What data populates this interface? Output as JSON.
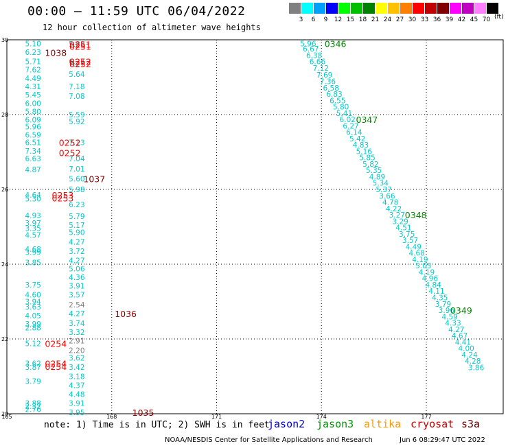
{
  "title": "00:00 — 11:59 UTC 06/04/2022",
  "subtitle": "12 hour collection of altimeter wave heights",
  "scale": {
    "labels": [
      "3",
      "6",
      "9",
      "12",
      "15",
      "18",
      "21",
      "24",
      "27",
      "30",
      "33",
      "36",
      "39",
      "42",
      "45",
      "70"
    ],
    "unit": "(ft)",
    "colors": [
      "#808080",
      "#00ffff",
      "#00a0ff",
      "#0000ff",
      "#00ff00",
      "#00c000",
      "#008000",
      "#ffff00",
      "#ffc000",
      "#ff8000",
      "#ff0000",
      "#c00000",
      "#800000",
      "#ff00ff",
      "#c000c0",
      "#ff80ff",
      "#000000"
    ]
  },
  "note": "note: 1) Time is in UTC; 2) SWH is in feet",
  "legend": [
    {
      "name": "jason2",
      "color": "#0000cc"
    },
    {
      "name": "jason3",
      "color": "#009900"
    },
    {
      "name": "altika",
      "color": "#ff9900"
    },
    {
      "name": "cryosat",
      "color": "#cc0000"
    },
    {
      "name": "s3a",
      "color": "#660000"
    }
  ],
  "credit": "NOAA/NESDIS Center for Satellite Applications and Research",
  "timestamp": "Jun  6 08:29:47 UTC 2022",
  "chart_data": {
    "type": "scatter",
    "title": "00:00 — 11:59 UTC 06/04/2022",
    "subtitle": "12 hour collection of altimeter wave heights",
    "xlim": [
      165,
      179.2
    ],
    "ylim": [
      20,
      30
    ],
    "x_ticks": [
      "165",
      "168",
      "171",
      "174",
      "177"
    ],
    "y_ticks": [
      "20",
      "22",
      "24",
      "26",
      "28",
      "30"
    ],
    "grid": true,
    "point_labels": [
      {
        "x": 165.75,
        "y": 29.9,
        "text": "5.10",
        "color": "#00cccc"
      },
      {
        "x": 165.75,
        "y": 29.67,
        "text": "6.23",
        "color": "#00cccc"
      },
      {
        "x": 165.75,
        "y": 29.42,
        "text": "5.71",
        "color": "#00cccc"
      },
      {
        "x": 165.75,
        "y": 29.2,
        "text": "7.62",
        "color": "#00cccc"
      },
      {
        "x": 165.75,
        "y": 28.97,
        "text": "4.49",
        "color": "#00cccc"
      },
      {
        "x": 165.75,
        "y": 28.75,
        "text": "4.31",
        "color": "#00cccc"
      },
      {
        "x": 165.75,
        "y": 28.53,
        "text": "5.45",
        "color": "#00cccc"
      },
      {
        "x": 165.75,
        "y": 28.3,
        "text": "6.00",
        "color": "#00cccc"
      },
      {
        "x": 165.75,
        "y": 28.08,
        "text": "5.80",
        "color": "#00cccc"
      },
      {
        "x": 165.75,
        "y": 27.86,
        "text": "6.09",
        "color": "#00cccc"
      },
      {
        "x": 165.75,
        "y": 27.68,
        "text": "5.96",
        "color": "#00cccc"
      },
      {
        "x": 165.75,
        "y": 27.46,
        "text": "6.59",
        "color": "#00cccc"
      },
      {
        "x": 165.75,
        "y": 27.26,
        "text": "6.51",
        "color": "#00cccc"
      },
      {
        "x": 165.75,
        "y": 27.03,
        "text": "7.34",
        "color": "#00cccc"
      },
      {
        "x": 165.75,
        "y": 26.83,
        "text": "6.63",
        "color": "#00cccc"
      },
      {
        "x": 165.75,
        "y": 26.53,
        "text": "4.87",
        "color": "#00cccc"
      },
      {
        "x": 165.75,
        "y": 25.85,
        "text": "4.64",
        "color": "#00cccc"
      },
      {
        "x": 165.75,
        "y": 25.75,
        "text": "5.30",
        "color": "#00cccc"
      },
      {
        "x": 165.75,
        "y": 25.3,
        "text": "4.93",
        "color": "#00cccc"
      },
      {
        "x": 165.75,
        "y": 25.1,
        "text": "3.97",
        "color": "#00cccc"
      },
      {
        "x": 165.75,
        "y": 24.96,
        "text": "3.35",
        "color": "#00cccc"
      },
      {
        "x": 165.75,
        "y": 24.78,
        "text": "4.57",
        "color": "#00cccc"
      },
      {
        "x": 165.75,
        "y": 24.4,
        "text": "4.68",
        "color": "#00cccc"
      },
      {
        "x": 165.75,
        "y": 24.32,
        "text": "3.99",
        "color": "#00cccc"
      },
      {
        "x": 165.75,
        "y": 24.05,
        "text": "3.85",
        "color": "#00cccc"
      },
      {
        "x": 165.75,
        "y": 23.45,
        "text": "3.75",
        "color": "#00cccc"
      },
      {
        "x": 165.75,
        "y": 23.18,
        "text": "4.60",
        "color": "#00cccc"
      },
      {
        "x": 165.75,
        "y": 23.0,
        "text": "3.94",
        "color": "#00cccc"
      },
      {
        "x": 165.75,
        "y": 22.86,
        "text": "3.63",
        "color": "#00cccc"
      },
      {
        "x": 165.75,
        "y": 22.62,
        "text": "4.05",
        "color": "#00cccc"
      },
      {
        "x": 165.75,
        "y": 22.4,
        "text": "3.99",
        "color": "#00cccc"
      },
      {
        "x": 165.75,
        "y": 22.3,
        "text": "2.88",
        "color": "#00cccc"
      },
      {
        "x": 165.75,
        "y": 21.88,
        "text": "5.12",
        "color": "#00cccc"
      },
      {
        "x": 165.75,
        "y": 21.35,
        "text": "3.62",
        "color": "#00cccc"
      },
      {
        "x": 165.75,
        "y": 21.25,
        "text": "3.87",
        "color": "#00cccc"
      },
      {
        "x": 165.75,
        "y": 20.87,
        "text": "3.79",
        "color": "#00cccc"
      },
      {
        "x": 165.75,
        "y": 20.28,
        "text": "3.88",
        "color": "#00cccc"
      },
      {
        "x": 165.75,
        "y": 20.2,
        "text": "2.32",
        "color": "#00cccc"
      },
      {
        "x": 165.75,
        "y": 20.12,
        "text": "2.76",
        "color": "#00cccc"
      },
      {
        "x": 167.0,
        "y": 29.89,
        "text": "5.88",
        "color": "#00cccc"
      },
      {
        "x": 167.0,
        "y": 29.42,
        "text": "6.27",
        "color": "#00cccc"
      },
      {
        "x": 167.0,
        "y": 29.36,
        "text": "7.27",
        "color": "#00cccc"
      },
      {
        "x": 167.0,
        "y": 29.08,
        "text": "5.64",
        "color": "#00cccc"
      },
      {
        "x": 167.0,
        "y": 28.75,
        "text": "7.18",
        "color": "#00cccc"
      },
      {
        "x": 167.0,
        "y": 28.5,
        "text": "7.08",
        "color": "#00cccc"
      },
      {
        "x": 167.0,
        "y": 28.0,
        "text": "5.59",
        "color": "#00cccc"
      },
      {
        "x": 167.0,
        "y": 27.82,
        "text": "5.92",
        "color": "#00cccc"
      },
      {
        "x": 167.0,
        "y": 27.26,
        "text": "7.13",
        "color": "#00cccc"
      },
      {
        "x": 167.0,
        "y": 26.83,
        "text": "7.04",
        "color": "#00cccc"
      },
      {
        "x": 167.0,
        "y": 26.55,
        "text": "7.01",
        "color": "#00cccc"
      },
      {
        "x": 167.0,
        "y": 26.28,
        "text": "5.60",
        "color": "#00cccc"
      },
      {
        "x": 167.0,
        "y": 26.0,
        "text": "5.98",
        "color": "#00cccc"
      },
      {
        "x": 167.0,
        "y": 25.6,
        "text": "6.23",
        "color": "#00cccc"
      },
      {
        "x": 167.0,
        "y": 25.28,
        "text": "5.79",
        "color": "#00cccc"
      },
      {
        "x": 167.0,
        "y": 25.05,
        "text": "5.17",
        "color": "#00cccc"
      },
      {
        "x": 167.0,
        "y": 24.85,
        "text": "5.90",
        "color": "#00cccc"
      },
      {
        "x": 167.0,
        "y": 24.6,
        "text": "4.27",
        "color": "#00cccc"
      },
      {
        "x": 167.0,
        "y": 24.35,
        "text": "3.72",
        "color": "#00cccc"
      },
      {
        "x": 167.0,
        "y": 24.1,
        "text": "4.27",
        "color": "#00cccc"
      },
      {
        "x": 167.0,
        "y": 23.88,
        "text": "5.06",
        "color": "#00cccc"
      },
      {
        "x": 167.0,
        "y": 23.65,
        "text": "4.36",
        "color": "#00cccc"
      },
      {
        "x": 167.0,
        "y": 23.42,
        "text": "3.91",
        "color": "#00cccc"
      },
      {
        "x": 167.0,
        "y": 23.18,
        "text": "3.57",
        "color": "#00cccc"
      },
      {
        "x": 167.0,
        "y": 22.92,
        "text": "2.54",
        "color": "#808080"
      },
      {
        "x": 167.0,
        "y": 22.68,
        "text": "4.27",
        "color": "#00cccc"
      },
      {
        "x": 167.0,
        "y": 22.42,
        "text": "3.74",
        "color": "#00cccc"
      },
      {
        "x": 167.0,
        "y": 22.18,
        "text": "3.32",
        "color": "#00cccc"
      },
      {
        "x": 167.0,
        "y": 21.95,
        "text": "2.91",
        "color": "#808080"
      },
      {
        "x": 167.0,
        "y": 21.7,
        "text": "2.20",
        "color": "#808080"
      },
      {
        "x": 167.0,
        "y": 21.5,
        "text": "3.62",
        "color": "#00cccc"
      },
      {
        "x": 167.0,
        "y": 21.25,
        "text": "3.42",
        "color": "#00cccc"
      },
      {
        "x": 167.0,
        "y": 21.0,
        "text": "3.18",
        "color": "#00cccc"
      },
      {
        "x": 167.0,
        "y": 20.76,
        "text": "4.37",
        "color": "#00cccc"
      },
      {
        "x": 167.0,
        "y": 20.52,
        "text": "4.48",
        "color": "#00cccc"
      },
      {
        "x": 167.0,
        "y": 20.28,
        "text": "3.91",
        "color": "#00cccc"
      },
      {
        "x": 167.0,
        "y": 20.04,
        "text": "3.95",
        "color": "#00cccc"
      },
      {
        "x": 174.0,
        "y": 29.9,
        "text": "5.96",
        "color": "#00cccc"
      },
      {
        "x": 174.0,
        "y": 29.76,
        "text": "6.67",
        "color": "#00cccc"
      },
      {
        "x": 174.0,
        "y": 29.59,
        "text": "6.38",
        "color": "#00cccc"
      },
      {
        "x": 174.0,
        "y": 29.42,
        "text": "6.66",
        "color": "#00cccc"
      },
      {
        "x": 174.0,
        "y": 29.25,
        "text": "7.12",
        "color": "#00cccc"
      },
      {
        "x": 174.0,
        "y": 29.06,
        "text": "7.69",
        "color": "#00cccc"
      },
      {
        "x": 174.0,
        "y": 28.89,
        "text": "7.36",
        "color": "#00cccc"
      },
      {
        "x": 174.0,
        "y": 28.72,
        "text": "6.58",
        "color": "#00cccc"
      },
      {
        "x": 174.0,
        "y": 28.55,
        "text": "6.83",
        "color": "#00cccc"
      },
      {
        "x": 174.0,
        "y": 28.38,
        "text": "6.55",
        "color": "#00cccc"
      },
      {
        "x": 174.0,
        "y": 28.21,
        "text": "5.80",
        "color": "#00cccc"
      },
      {
        "x": 174.0,
        "y": 28.04,
        "text": "5.41",
        "color": "#00cccc"
      },
      {
        "x": 174.0,
        "y": 27.87,
        "text": "6.02",
        "color": "#00cccc"
      },
      {
        "x": 174.0,
        "y": 27.7,
        "text": "6.27",
        "color": "#00cccc"
      },
      {
        "x": 174.0,
        "y": 27.53,
        "text": "6.14",
        "color": "#00cccc"
      },
      {
        "x": 174.0,
        "y": 27.36,
        "text": "5.42",
        "color": "#00cccc"
      },
      {
        "x": 174.0,
        "y": 27.19,
        "text": "4.83",
        "color": "#00cccc"
      },
      {
        "x": 174.0,
        "y": 27.02,
        "text": "5.16",
        "color": "#00cccc"
      },
      {
        "x": 174.0,
        "y": 26.85,
        "text": "5.85",
        "color": "#00cccc"
      },
      {
        "x": 174.0,
        "y": 26.68,
        "text": "5.82",
        "color": "#00cccc"
      },
      {
        "x": 174.0,
        "y": 26.51,
        "text": "5.35",
        "color": "#00cccc"
      },
      {
        "x": 174.0,
        "y": 26.34,
        "text": "4.89",
        "color": "#00cccc"
      },
      {
        "x": 174.0,
        "y": 26.17,
        "text": "5.34",
        "color": "#00cccc"
      },
      {
        "x": 174.0,
        "y": 26.0,
        "text": "5.37",
        "color": "#00cccc"
      },
      {
        "x": 174.0,
        "y": 25.83,
        "text": "3.66",
        "color": "#00cccc"
      },
      {
        "x": 174.0,
        "y": 25.66,
        "text": "4.78",
        "color": "#00cccc"
      },
      {
        "x": 174.0,
        "y": 25.49,
        "text": "4.22",
        "color": "#00cccc"
      },
      {
        "x": 174.0,
        "y": 25.32,
        "text": "3.27",
        "color": "#00cccc"
      },
      {
        "x": 174.0,
        "y": 25.15,
        "text": "3.29",
        "color": "#00cccc"
      },
      {
        "x": 174.0,
        "y": 24.98,
        "text": "4.51",
        "color": "#00cccc"
      },
      {
        "x": 174.0,
        "y": 24.81,
        "text": "3.75",
        "color": "#00cccc"
      },
      {
        "x": 174.0,
        "y": 24.64,
        "text": "3.57",
        "color": "#00cccc"
      },
      {
        "x": 174.0,
        "y": 24.47,
        "text": "4.49",
        "color": "#00cccc"
      },
      {
        "x": 174.0,
        "y": 24.3,
        "text": "4.68",
        "color": "#00cccc"
      },
      {
        "x": 174.0,
        "y": 24.13,
        "text": "4.19",
        "color": "#00cccc"
      },
      {
        "x": 174.0,
        "y": 23.96,
        "text": "5.05",
        "color": "#00cccc"
      },
      {
        "x": 174.0,
        "y": 23.79,
        "text": "4.19",
        "color": "#00cccc"
      },
      {
        "x": 174.0,
        "y": 23.62,
        "text": "4.96",
        "color": "#00cccc"
      },
      {
        "x": 174.0,
        "y": 23.45,
        "text": "4.84",
        "color": "#00cccc"
      },
      {
        "x": 174.0,
        "y": 23.28,
        "text": "4.11",
        "color": "#00cccc"
      },
      {
        "x": 174.0,
        "y": 23.11,
        "text": "4.35",
        "color": "#00cccc"
      },
      {
        "x": 174.0,
        "y": 22.94,
        "text": "3.79",
        "color": "#00cccc"
      },
      {
        "x": 174.0,
        "y": 22.77,
        "text": "3.96",
        "color": "#00cccc"
      },
      {
        "x": 174.0,
        "y": 22.6,
        "text": "4.59",
        "color": "#00cccc"
      },
      {
        "x": 174.0,
        "y": 22.43,
        "text": "4.33",
        "color": "#00cccc"
      },
      {
        "x": 174.0,
        "y": 22.26,
        "text": "4.27",
        "color": "#00cccc"
      },
      {
        "x": 174.0,
        "y": 22.09,
        "text": "4.67",
        "color": "#00cccc"
      },
      {
        "x": 174.0,
        "y": 21.92,
        "text": "4.41",
        "color": "#00cccc"
      },
      {
        "x": 174.0,
        "y": 21.75,
        "text": "4.00",
        "color": "#00cccc"
      },
      {
        "x": 174.0,
        "y": 21.58,
        "text": "4.24",
        "color": "#00cccc"
      },
      {
        "x": 174.0,
        "y": 21.41,
        "text": "4.28",
        "color": "#00cccc"
      },
      {
        "x": 174.0,
        "y": 21.24,
        "text": "3.86",
        "color": "#00cccc"
      }
    ],
    "time_labels": [
      {
        "x": 167.1,
        "y": 29.88,
        "text": "0251",
        "color": "#ff0000"
      },
      {
        "x": 167.1,
        "y": 29.83,
        "text": "0251",
        "color": "#ff0000"
      },
      {
        "x": 166.4,
        "y": 29.66,
        "text": "1038",
        "color": "#880000"
      },
      {
        "x": 167.1,
        "y": 29.42,
        "text": "0252",
        "color": "#ff0000"
      },
      {
        "x": 167.1,
        "y": 29.36,
        "text": "0252",
        "color": "#ff0000"
      },
      {
        "x": 166.8,
        "y": 27.26,
        "text": "0252",
        "color": "#ff0000"
      },
      {
        "x": 166.8,
        "y": 26.98,
        "text": "0252",
        "color": "#ff0000"
      },
      {
        "x": 167.5,
        "y": 26.28,
        "text": "1037",
        "color": "#880000"
      },
      {
        "x": 166.6,
        "y": 25.85,
        "text": "0253",
        "color": "#ff0000"
      },
      {
        "x": 166.6,
        "y": 25.77,
        "text": "0253",
        "color": "#ff0000"
      },
      {
        "x": 168.4,
        "y": 22.68,
        "text": "1036",
        "color": "#880000"
      },
      {
        "x": 166.4,
        "y": 21.88,
        "text": "0254",
        "color": "#ff0000"
      },
      {
        "x": 166.4,
        "y": 21.35,
        "text": "0254",
        "color": "#ff0000"
      },
      {
        "x": 166.4,
        "y": 21.27,
        "text": "0254",
        "color": "#ff0000"
      },
      {
        "x": 168.9,
        "y": 20.04,
        "text": "1035",
        "color": "#880000"
      },
      {
        "x": 174.4,
        "y": 29.9,
        "text": "0346",
        "color": "#008800"
      },
      {
        "x": 175.3,
        "y": 27.87,
        "text": "0347",
        "color": "#008800"
      },
      {
        "x": 176.7,
        "y": 25.32,
        "text": "0348",
        "color": "#008800"
      },
      {
        "x": 178.0,
        "y": 22.77,
        "text": "0349",
        "color": "#008800"
      }
    ]
  }
}
